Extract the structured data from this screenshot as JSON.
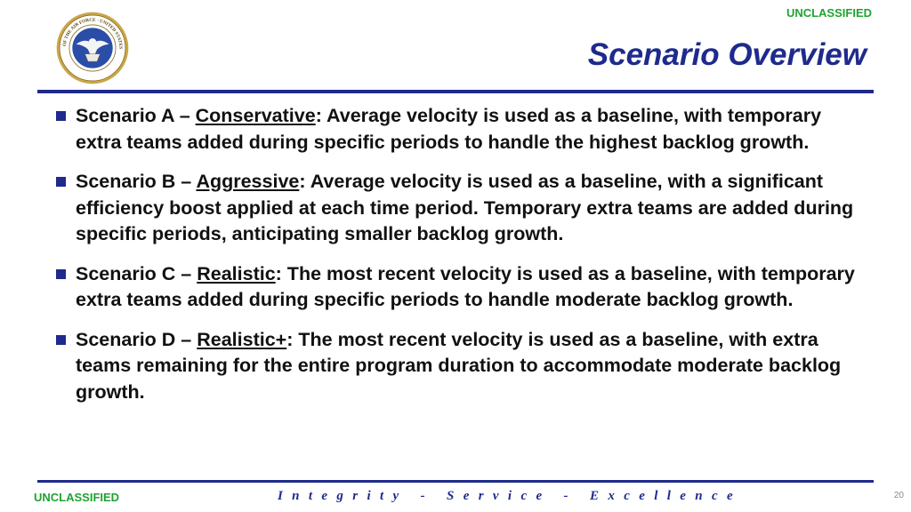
{
  "header": {
    "classification": "UNCLASSIFIED",
    "title": "Scenario Overview",
    "seal": {
      "icon": "department-of-the-air-force-seal",
      "text": "DEPARTMENT OF THE AIR FORCE · UNITED STATES OF AMERICA"
    }
  },
  "bullets": [
    {
      "prefix": "Scenario A – ",
      "keyword": "Conservative",
      "text": ": Average velocity is used as a baseline, with temporary extra teams added during specific periods to handle the highest backlog growth."
    },
    {
      "prefix": "Scenario B – ",
      "keyword": "Aggressive",
      "text": ": Average velocity is used as a baseline, with a significant efficiency boost applied at each time period. Temporary extra teams are added during specific periods, anticipating smaller backlog growth."
    },
    {
      "prefix": "Scenario C – ",
      "keyword": "Realistic",
      "text": ": The most recent velocity is used as a baseline, with temporary extra teams added during specific periods to handle moderate backlog growth."
    },
    {
      "prefix": "Scenario D – ",
      "keyword": "Realistic+",
      "text": ": The most recent velocity is used as a baseline, with extra teams remaining for the entire program duration to accommodate moderate backlog growth."
    }
  ],
  "footer": {
    "classification": "UNCLASSIFIED",
    "motto": "Integrity - Service - Excellence",
    "page_number": "20"
  },
  "colors": {
    "accent": "#1e2a8c",
    "classification": "#1fa330",
    "text": "#111111",
    "seal_gold": "#c9a74a"
  }
}
